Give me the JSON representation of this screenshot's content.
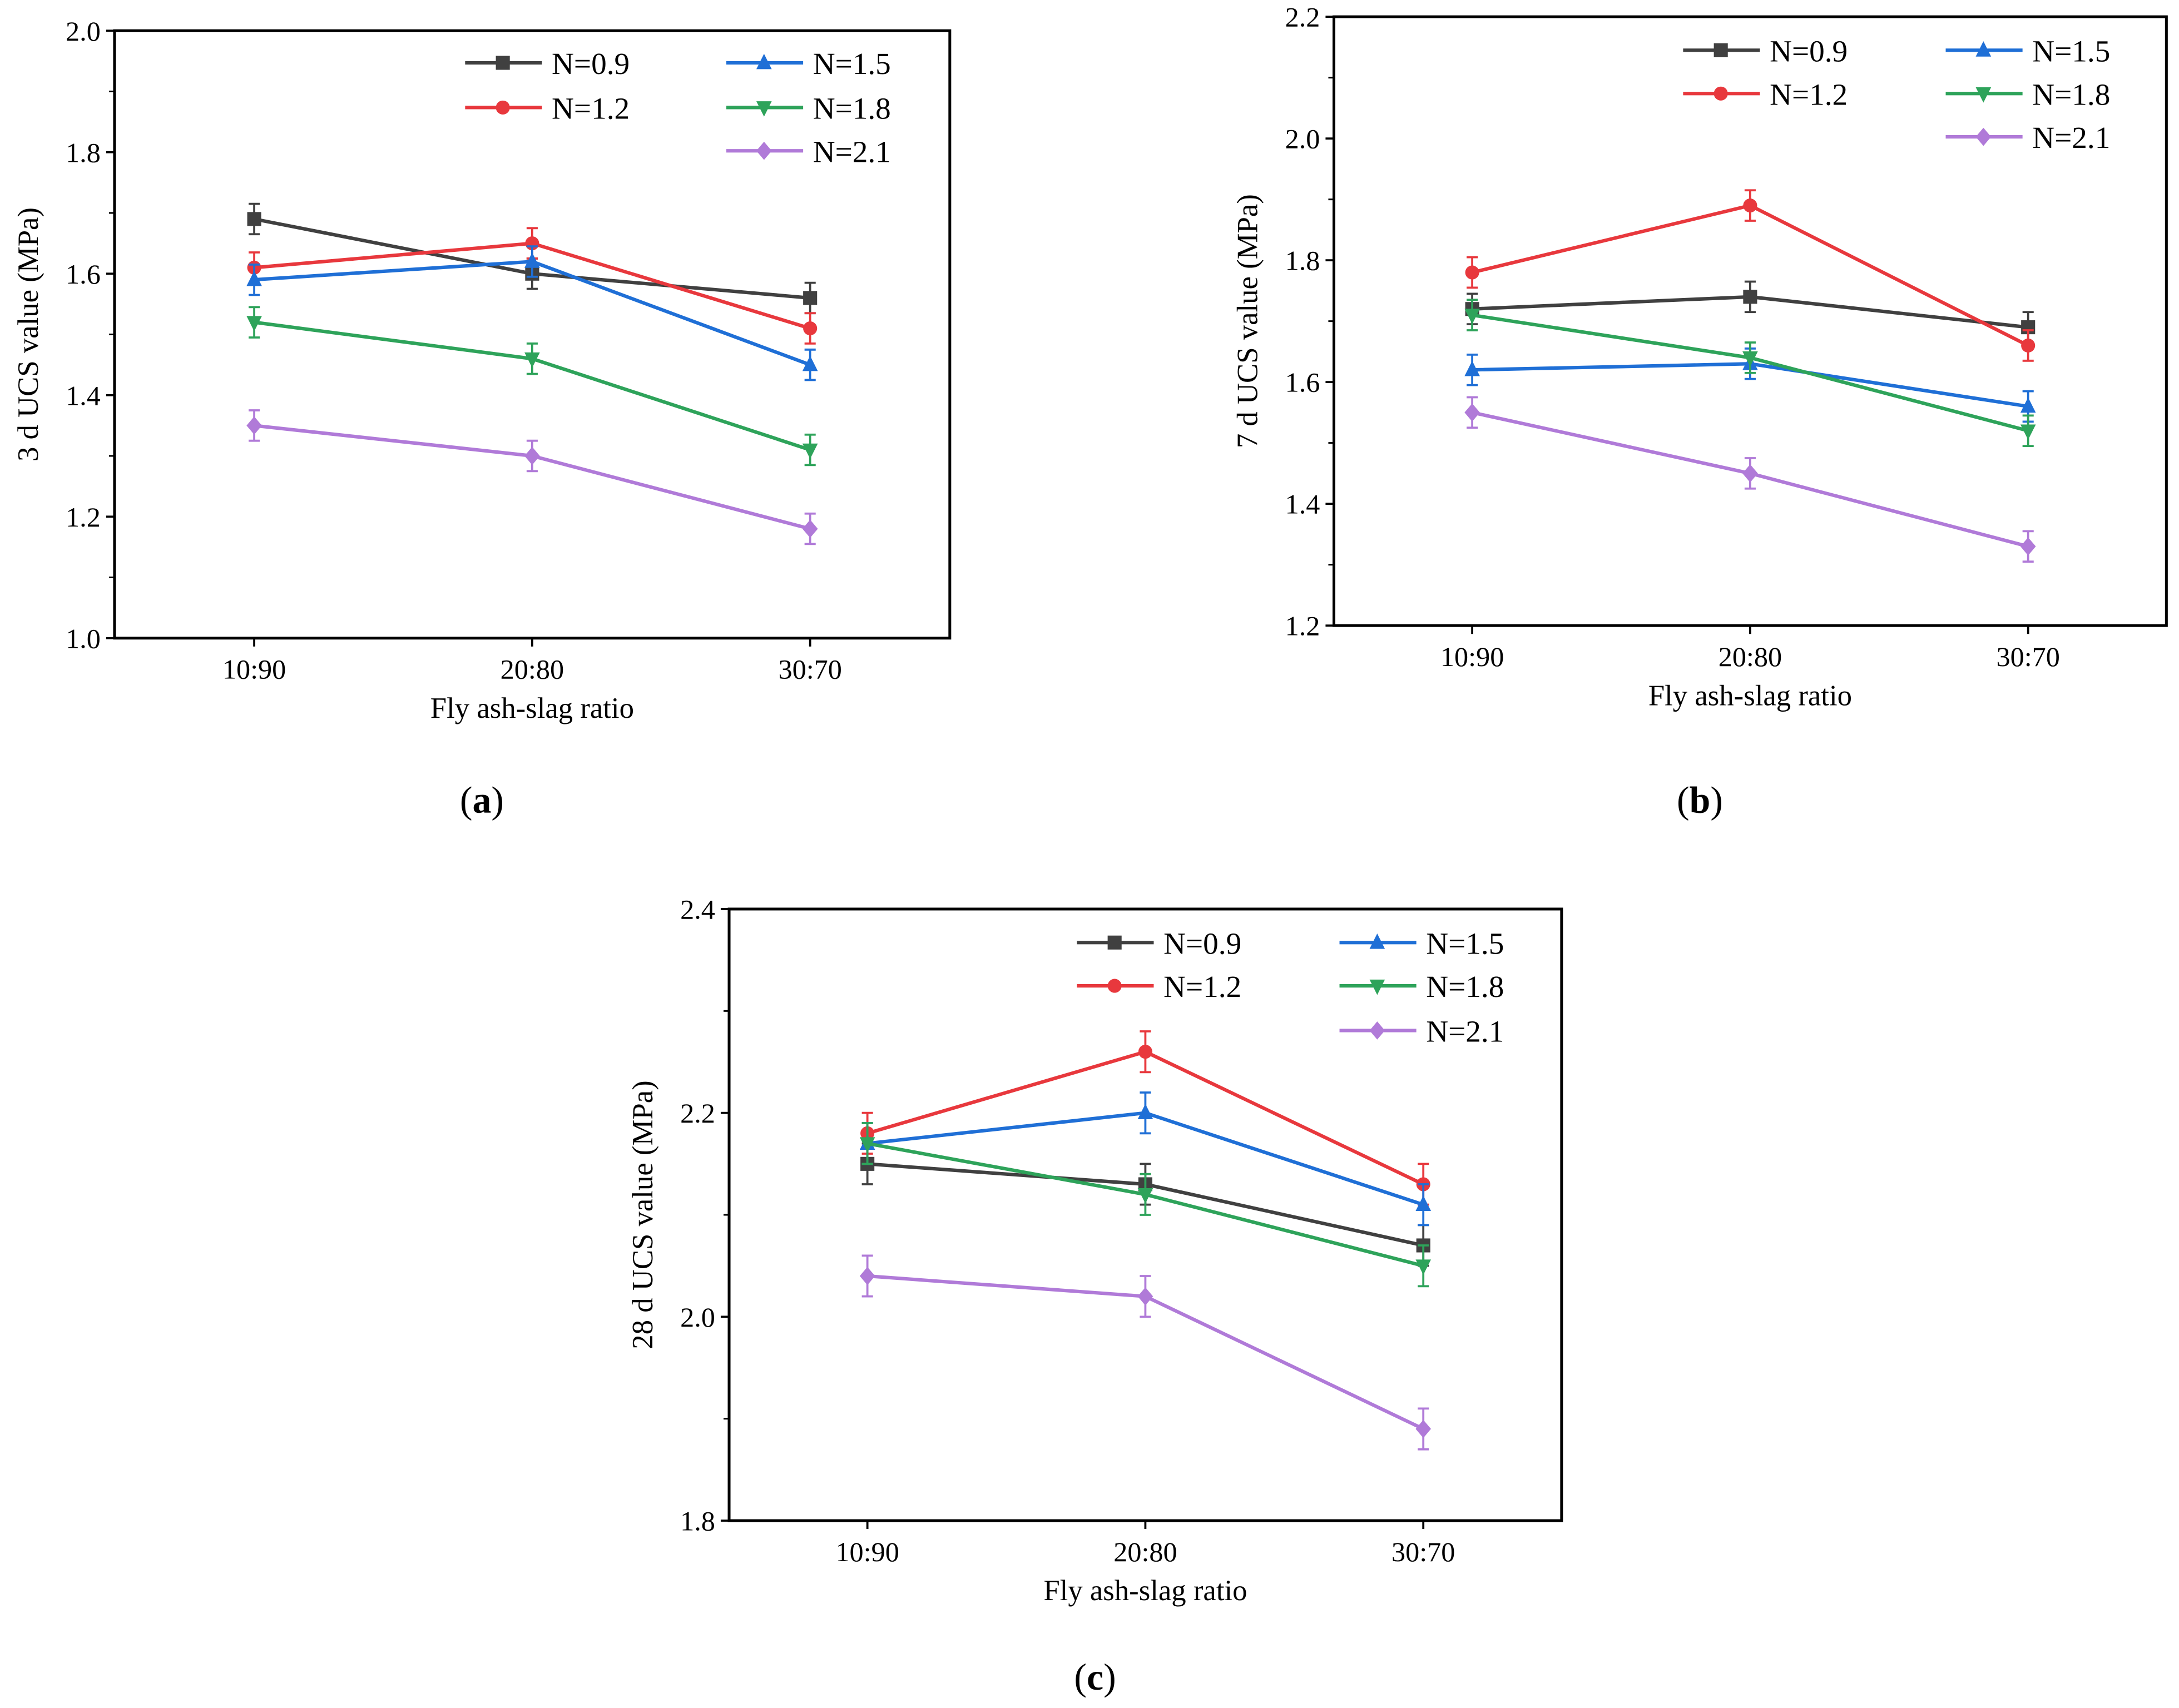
{
  "chart_data": [
    {
      "type": "line",
      "panel_label": "a",
      "categories": [
        "10:90",
        "20:80",
        "30:70"
      ],
      "xlabel": "Fly ash-slag ratio",
      "ylabel": "3 d UCS value (MPa)",
      "ylim": [
        1.0,
        2.0
      ],
      "yticks": [
        "1.0",
        "1.2",
        "1.4",
        "1.6",
        "1.8",
        "2.0"
      ],
      "legend_placement": "top-right",
      "error": 0.025,
      "series": [
        {
          "name": "N=0.9",
          "values": [
            1.69,
            1.6,
            1.56
          ],
          "color": "#404040",
          "marker": "square"
        },
        {
          "name": "N=1.2",
          "values": [
            1.61,
            1.65,
            1.51
          ],
          "color": "#e8383d",
          "marker": "circle"
        },
        {
          "name": "N=1.5",
          "values": [
            1.59,
            1.62,
            1.45
          ],
          "color": "#1f6fd6",
          "marker": "triangle-up"
        },
        {
          "name": "N=1.8",
          "values": [
            1.52,
            1.46,
            1.31
          ],
          "color": "#2ea35a",
          "marker": "triangle-down"
        },
        {
          "name": "N=2.1",
          "values": [
            1.35,
            1.3,
            1.18
          ],
          "color": "#b07ad8",
          "marker": "diamond"
        }
      ]
    },
    {
      "type": "line",
      "panel_label": "b",
      "categories": [
        "10:90",
        "20:80",
        "30:70"
      ],
      "xlabel": "Fly ash-slag ratio",
      "ylabel": "7 d UCS value (MPa)",
      "ylim": [
        1.2,
        2.2
      ],
      "yticks": [
        "1.2",
        "1.4",
        "1.6",
        "1.8",
        "2.0",
        "2.2"
      ],
      "legend_placement": "top-right",
      "error": 0.025,
      "series": [
        {
          "name": "N=0.9",
          "values": [
            1.72,
            1.74,
            1.69
          ],
          "color": "#404040",
          "marker": "square"
        },
        {
          "name": "N=1.2",
          "values": [
            1.78,
            1.89,
            1.66
          ],
          "color": "#e8383d",
          "marker": "circle"
        },
        {
          "name": "N=1.5",
          "values": [
            1.62,
            1.63,
            1.56
          ],
          "color": "#1f6fd6",
          "marker": "triangle-up"
        },
        {
          "name": "N=1.8",
          "values": [
            1.71,
            1.64,
            1.52
          ],
          "color": "#2ea35a",
          "marker": "triangle-down"
        },
        {
          "name": "N=2.1",
          "values": [
            1.55,
            1.45,
            1.33
          ],
          "color": "#b07ad8",
          "marker": "diamond"
        }
      ]
    },
    {
      "type": "line",
      "panel_label": "c",
      "categories": [
        "10:90",
        "20:80",
        "30:70"
      ],
      "xlabel": "Fly ash-slag ratio",
      "ylabel": "28 d UCS value (MPa)",
      "ylim": [
        1.8,
        2.4
      ],
      "yticks": [
        "1.8",
        "2.0",
        "2.2",
        "2.4"
      ],
      "legend_placement": "top-right",
      "error": 0.02,
      "series": [
        {
          "name": "N=0.9",
          "values": [
            2.15,
            2.13,
            2.07
          ],
          "color": "#404040",
          "marker": "square"
        },
        {
          "name": "N=1.2",
          "values": [
            2.18,
            2.26,
            2.13
          ],
          "color": "#e8383d",
          "marker": "circle"
        },
        {
          "name": "N=1.5",
          "values": [
            2.17,
            2.2,
            2.11
          ],
          "color": "#1f6fd6",
          "marker": "triangle-up"
        },
        {
          "name": "N=1.8",
          "values": [
            2.17,
            2.12,
            2.05
          ],
          "color": "#2ea35a",
          "marker": "triangle-down"
        },
        {
          "name": "N=2.1",
          "values": [
            2.04,
            2.02,
            1.89
          ],
          "color": "#b07ad8",
          "marker": "diamond"
        }
      ]
    }
  ]
}
